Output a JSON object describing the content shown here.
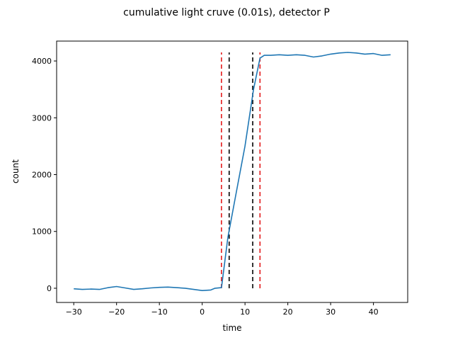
{
  "chart_data": {
    "type": "line",
    "title": "cumulative light cruve (0.01s), detector P",
    "xlabel": "time",
    "ylabel": "count",
    "xlim": [
      -34,
      48
    ],
    "ylim": [
      -250,
      4350
    ],
    "xticks": [
      -30,
      -20,
      -10,
      0,
      10,
      20,
      30,
      40
    ],
    "yticks": [
      0,
      1000,
      2000,
      3000,
      4000
    ],
    "xtick_labels": [
      "−30",
      "−20",
      "−10",
      "0",
      "10",
      "20",
      "30",
      "40"
    ],
    "ytick_labels": [
      "0",
      "1000",
      "2000",
      "3000",
      "4000"
    ],
    "grid": false,
    "series": [
      {
        "color": "#1f77b4",
        "x": [
          -30,
          -28,
          -26,
          -24,
          -22,
          -20,
          -18,
          -16,
          -14,
          -12,
          -10,
          -8,
          -6,
          -4,
          -2,
          0,
          2,
          3,
          4.5,
          6,
          8,
          10,
          12,
          13.5,
          14.5,
          16,
          18,
          20,
          22,
          24,
          26,
          28,
          30,
          32,
          34,
          36,
          38,
          40,
          42,
          44
        ],
        "y": [
          -10,
          -20,
          -15,
          -20,
          10,
          30,
          5,
          -20,
          -10,
          5,
          15,
          20,
          10,
          0,
          -20,
          -40,
          -30,
          0,
          10,
          900,
          1700,
          2500,
          3500,
          4050,
          4100,
          4100,
          4110,
          4100,
          4110,
          4100,
          4070,
          4090,
          4120,
          4140,
          4150,
          4140,
          4120,
          4130,
          4100,
          4110
        ]
      }
    ],
    "vlines": [
      {
        "x": 4.5,
        "color": "#e31a1c",
        "style": "dashed"
      },
      {
        "x": 6.3,
        "color": "#000000",
        "style": "dashed"
      },
      {
        "x": 11.8,
        "color": "#000000",
        "style": "dashed"
      },
      {
        "x": 13.5,
        "color": "#e31a1c",
        "style": "dashed"
      }
    ],
    "vline_range": [
      0,
      4150
    ]
  }
}
